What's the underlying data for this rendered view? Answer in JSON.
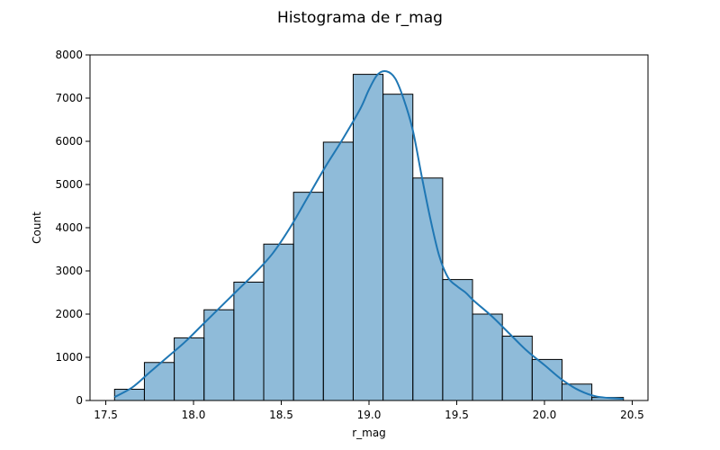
{
  "chart_data": {
    "type": "bar",
    "title": "Histograma de r_mag",
    "xlabel": "r_mag",
    "ylabel": "Count",
    "xlim": [
      17.41,
      20.59
    ],
    "ylim": [
      0,
      8000
    ],
    "xticks": [
      17.5,
      18.0,
      18.5,
      19.0,
      19.5,
      20.0,
      20.5
    ],
    "xtick_labels": [
      "17.5",
      "18.0",
      "18.5",
      "19.0",
      "19.5",
      "20.0",
      "20.5"
    ],
    "yticks": [
      0,
      1000,
      2000,
      3000,
      4000,
      5000,
      6000,
      7000,
      8000
    ],
    "ytick_labels": [
      "0",
      "1000",
      "2000",
      "3000",
      "4000",
      "5000",
      "6000",
      "7000",
      "8000"
    ],
    "bins": [
      {
        "x0": 17.55,
        "x1": 17.72,
        "count": 260
      },
      {
        "x0": 17.72,
        "x1": 17.89,
        "count": 880
      },
      {
        "x0": 17.89,
        "x1": 18.06,
        "count": 1450
      },
      {
        "x0": 18.06,
        "x1": 18.23,
        "count": 2100
      },
      {
        "x0": 18.23,
        "x1": 18.4,
        "count": 2740
      },
      {
        "x0": 18.4,
        "x1": 18.57,
        "count": 3620
      },
      {
        "x0": 18.57,
        "x1": 18.74,
        "count": 4820
      },
      {
        "x0": 18.74,
        "x1": 18.91,
        "count": 5980
      },
      {
        "x0": 18.91,
        "x1": 19.08,
        "count": 7550
      },
      {
        "x0": 19.08,
        "x1": 19.25,
        "count": 7090
      },
      {
        "x0": 19.25,
        "x1": 19.42,
        "count": 5150
      },
      {
        "x0": 19.42,
        "x1": 19.59,
        "count": 2800
      },
      {
        "x0": 19.59,
        "x1": 19.76,
        "count": 2000
      },
      {
        "x0": 19.76,
        "x1": 19.93,
        "count": 1490
      },
      {
        "x0": 19.93,
        "x1": 20.1,
        "count": 950
      },
      {
        "x0": 20.1,
        "x1": 20.27,
        "count": 380
      },
      {
        "x0": 20.27,
        "x1": 20.45,
        "count": 70
      }
    ],
    "kde": {
      "x": [
        17.55,
        17.65,
        17.75,
        17.85,
        17.95,
        18.05,
        18.15,
        18.25,
        18.35,
        18.45,
        18.55,
        18.65,
        18.75,
        18.85,
        18.95,
        19.0,
        19.05,
        19.1,
        19.15,
        19.2,
        19.25,
        19.3,
        19.35,
        19.4,
        19.45,
        19.5,
        19.55,
        19.6,
        19.7,
        19.8,
        19.9,
        20.0,
        20.1,
        20.2,
        20.3,
        20.45
      ],
      "y": [
        80,
        300,
        650,
        1000,
        1350,
        1750,
        2150,
        2550,
        2950,
        3400,
        4000,
        4700,
        5400,
        6050,
        6750,
        7200,
        7550,
        7620,
        7450,
        6950,
        6250,
        5200,
        4200,
        3350,
        2850,
        2650,
        2500,
        2300,
        1950,
        1550,
        1150,
        820,
        480,
        230,
        90,
        40
      ]
    },
    "colors": {
      "bar_fill": "#1f77b4",
      "bar_edge": "#000000",
      "line": "#1f77b4"
    },
    "grid": false,
    "legend": "none"
  }
}
